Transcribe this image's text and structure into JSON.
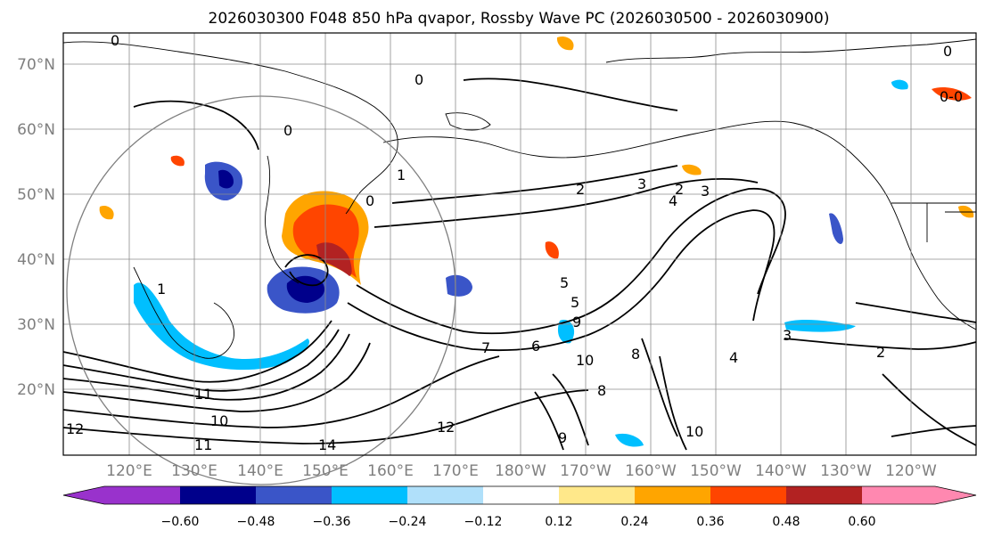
{
  "title": "2026030300 F048 850 hPa qvapor, Rossby Wave PC (2026030500 - 2026030900)",
  "lat_labels": [
    "70°N",
    "60°N",
    "50°N",
    "40°N",
    "30°N",
    "20°N"
  ],
  "lon_labels": [
    "120°E",
    "130°E",
    "140°E",
    "150°E",
    "160°E",
    "170°E",
    "180°W",
    "170°W",
    "160°W",
    "150°W",
    "140°W",
    "130°W",
    "120°W"
  ],
  "colorbar": {
    "ticks": [
      "−0.60",
      "−0.48",
      "−0.36",
      "−0.24",
      "−0.12",
      "0.12",
      "0.24",
      "0.36",
      "0.48",
      "0.60"
    ],
    "colors": [
      "#9932cc",
      "#00008b",
      "#3a55c8",
      "#00bfff",
      "#b0e0fa",
      "#ffffff",
      "#ffe88a",
      "#ffa500",
      "#ff4500",
      "#b22222",
      "#ff88b0"
    ]
  },
  "contour_labels": [
    "0",
    "0",
    "0",
    "0",
    "0",
    "1",
    "1",
    "2",
    "2",
    "2",
    "3",
    "3",
    "3",
    "4",
    "4",
    "5",
    "5",
    "6",
    "7",
    "8",
    "8",
    "9",
    "9",
    "10",
    "10",
    "10",
    "11",
    "11",
    "12",
    "12",
    "14",
    "0-0"
  ]
}
